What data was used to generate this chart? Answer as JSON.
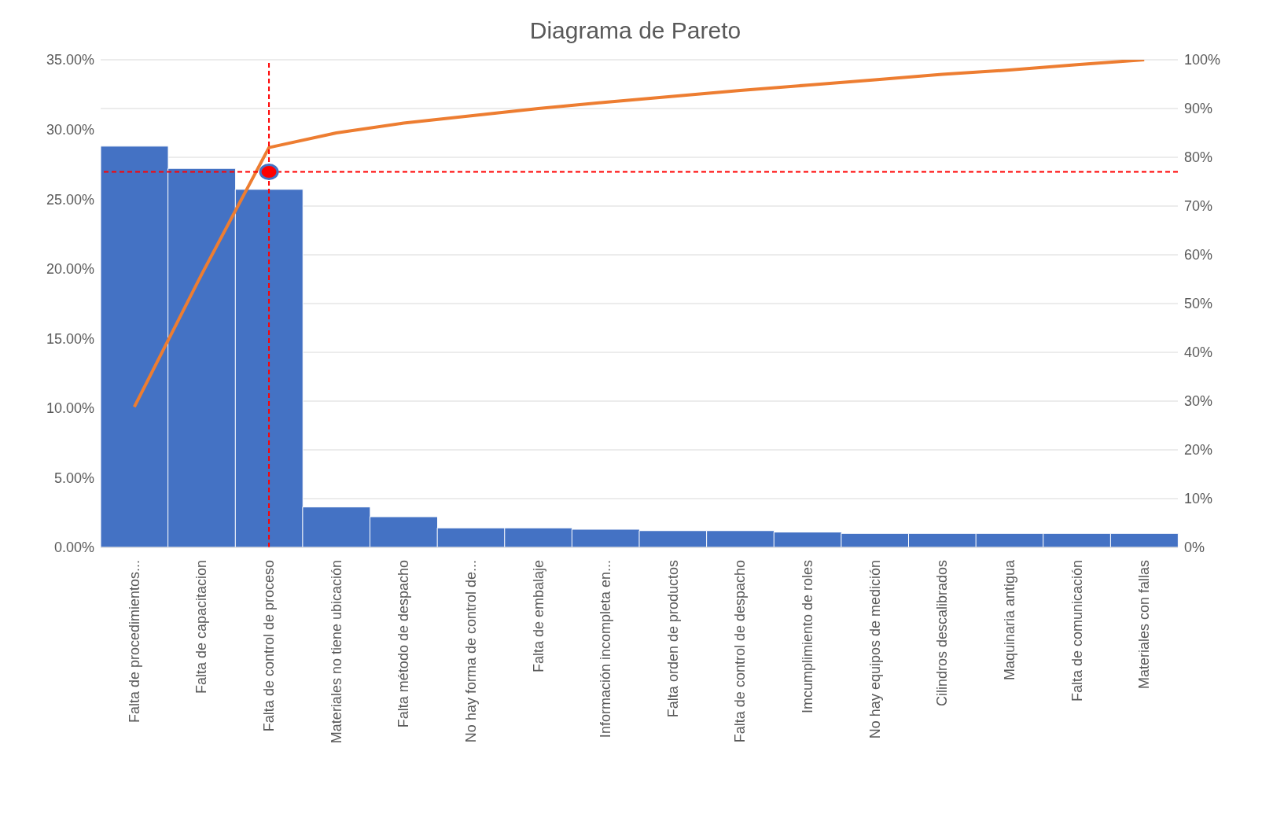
{
  "chart_data": {
    "type": "bar",
    "title": "Diagrama de Pareto",
    "categories": [
      "Falta de procedimientos...",
      "Falta de capacitacion",
      "Falta de control de proceso",
      "Materiales no tiene ubicación",
      "Falta método de despacho",
      "No hay forma de control de...",
      "Falta de embalaje",
      "Información incompleta en...",
      "Falta orden de productos",
      "Falta de control de despacho",
      "Imcumplimiento de roles",
      "No hay equipos de medición",
      "Cilindros descalibrados",
      "Maquinaria antigua",
      "Falta de comunicación",
      "Materiales con fallas"
    ],
    "series": [
      {
        "color": "#4472c4",
        "values": [
          28.8,
          27.2,
          25.7,
          2.9,
          2.2,
          1.4,
          1.4,
          1.3,
          1.2,
          1.2,
          1.1,
          1.0,
          1.0,
          1.0,
          1.0,
          1.0
        ]
      },
      {
        "type": "line",
        "axis": "y2",
        "marker": "none",
        "color": "#ed7d31",
        "values": [
          28.8,
          56,
          82,
          85,
          87,
          88.5,
          90,
          91.3,
          92.5,
          93.7,
          94.8,
          95.9,
          97,
          97.9,
          99,
          100
        ]
      },
      {
        "type": "scatter",
        "axis": "y2",
        "marker": "circle",
        "color": "#ff0000",
        "x": [
          "Falta de control de proceso"
        ],
        "values": [
          77
        ]
      }
    ],
    "ylim": [
      0,
      35
    ],
    "yticks": [
      {
        "value": 0,
        "label": "0.00%"
      },
      {
        "value": 5,
        "label": "5.00%"
      },
      {
        "value": 10,
        "label": "10.00%"
      },
      {
        "value": 15,
        "label": "15.00%"
      },
      {
        "value": 20,
        "label": "20.00%"
      },
      {
        "value": 25,
        "label": "25.00%"
      },
      {
        "value": 30,
        "label": "30.00%"
      },
      {
        "value": 35,
        "label": "35.00%"
      }
    ],
    "y2lim": [
      0,
      100
    ],
    "y2ticks": [
      {
        "value": 0,
        "label": "0%"
      },
      {
        "value": 10,
        "label": "10%"
      },
      {
        "value": 20,
        "label": "20%"
      },
      {
        "value": 30,
        "label": "30%"
      },
      {
        "value": 40,
        "label": "40%"
      },
      {
        "value": 50,
        "label": "50%"
      },
      {
        "value": 60,
        "label": "60%"
      },
      {
        "value": 70,
        "label": "70%"
      },
      {
        "value": 80,
        "label": "80%"
      },
      {
        "value": 90,
        "label": "90%"
      },
      {
        "value": 100,
        "label": "100%"
      }
    ],
    "ref_lines": [
      {
        "axis": "y2",
        "value": 77,
        "color": "#ff0000",
        "line_style": "dashed"
      },
      {
        "axis": "x",
        "value": "Falta de control de proceso",
        "color": "#ff0000",
        "line_style": "dashed"
      }
    ],
    "grid": "y"
  }
}
